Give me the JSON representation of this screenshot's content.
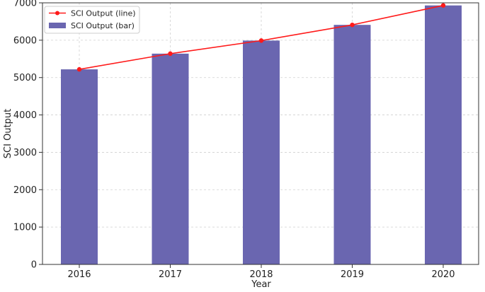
{
  "chart_data": {
    "type": "bar",
    "categories": [
      "2016",
      "2017",
      "2018",
      "2019",
      "2020"
    ],
    "series": [
      {
        "name": "SCI Output (bar)",
        "type": "bar",
        "values": [
          5220,
          5640,
          5990,
          6410,
          6930
        ],
        "color": "#6a66b0"
      },
      {
        "name": "SCI Output (line)",
        "type": "line",
        "values": [
          5220,
          5640,
          5990,
          6410,
          6930
        ],
        "color": "#ff1a1a"
      }
    ],
    "xlabel": "Year",
    "ylabel": "SCI Output",
    "ylim": [
      0,
      7000
    ],
    "yticks": [
      "0",
      "1000",
      "2000",
      "3000",
      "4000",
      "5000",
      "6000",
      "7000"
    ],
    "grid": true,
    "legend_position": "top-left"
  }
}
